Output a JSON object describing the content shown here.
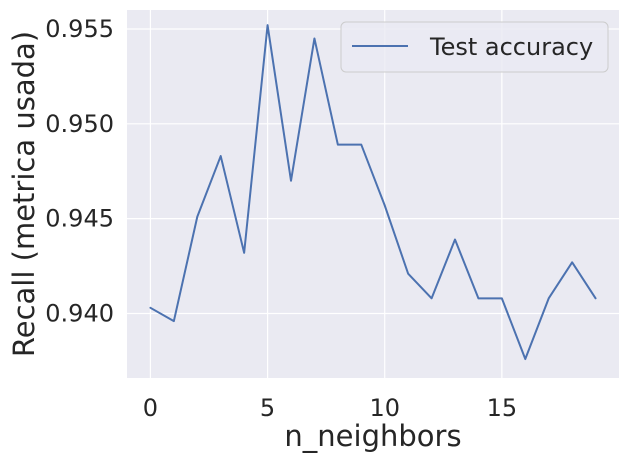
{
  "chart_data": {
    "type": "line",
    "title": "",
    "xlabel": "n_neighbors",
    "ylabel": "Recall (metrica usada)",
    "xlim": [
      -1,
      20
    ],
    "ylim": [
      0.9366,
      0.956
    ],
    "xticks": [
      0,
      5,
      10,
      15
    ],
    "xtick_labels": [
      "0",
      "5",
      "10",
      "15"
    ],
    "yticks": [
      0.94,
      0.945,
      0.95,
      0.955
    ],
    "ytick_labels": [
      "0.940",
      "0.945",
      "0.950",
      "0.955"
    ],
    "grid": true,
    "legend_position": "top-right",
    "background_color": "#eaeaf2",
    "grid_color": "#ffffff",
    "series": [
      {
        "name": "Test accuracy",
        "color": "#4c72b0",
        "x": [
          0,
          1,
          2,
          3,
          4,
          5,
          6,
          7,
          8,
          9,
          10,
          11,
          12,
          13,
          14,
          15,
          16,
          17,
          18,
          19
        ],
        "y": [
          0.9403,
          0.9396,
          0.9451,
          0.9483,
          0.9432,
          0.9552,
          0.947,
          0.9545,
          0.9489,
          0.9489,
          0.9457,
          0.9421,
          0.9408,
          0.9439,
          0.9408,
          0.9408,
          0.9376,
          0.9408,
          0.9427,
          0.9408
        ]
      }
    ]
  }
}
